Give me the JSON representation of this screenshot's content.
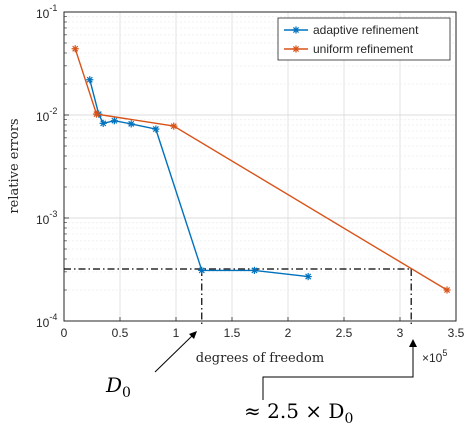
{
  "chart_data": {
    "type": "line",
    "xlabel": "degrees of freedom",
    "ylabel": "relative errors",
    "x_multiplier_label": "×10",
    "x_multiplier_exp": "5",
    "xlim": [
      0,
      3.5
    ],
    "ylim": [
      0.0001,
      0.1
    ],
    "yscale": "log",
    "grid": true,
    "legend_position": "top-right",
    "xticks": [
      "0",
      "0.5",
      "1",
      "1.5",
      "2",
      "2.5",
      "3",
      "3.5"
    ],
    "yticks": [
      {
        "base": "10",
        "exp": "-1"
      },
      {
        "base": "10",
        "exp": "-2"
      },
      {
        "base": "10",
        "exp": "-3"
      },
      {
        "base": "10",
        "exp": "-4"
      }
    ],
    "series": [
      {
        "name": "adaptive refinement",
        "color": "#0072BD",
        "marker": "asterisk",
        "x": [
          0.23,
          0.31,
          0.35,
          0.45,
          0.6,
          0.82,
          1.23,
          1.7,
          2.18
        ],
        "y": [
          0.022,
          0.0102,
          0.0083,
          0.0088,
          0.0082,
          0.0073,
          0.00031,
          0.00031,
          0.00027
        ]
      },
      {
        "name": "uniform refinement",
        "color": "#D95319",
        "marker": "asterisk",
        "x": [
          0.1,
          0.29,
          0.98,
          3.42
        ],
        "y": [
          0.044,
          0.0102,
          0.0078,
          0.0002
        ]
      }
    ],
    "reference_lines": {
      "y": 0.00032,
      "x_d0": 1.23,
      "x_25d0": 3.1
    },
    "annotations": [
      {
        "name": "d0",
        "text": "D",
        "subscript": "0"
      },
      {
        "name": "approx",
        "text": "≈ 2.5 × D",
        "subscript": "0"
      }
    ]
  }
}
